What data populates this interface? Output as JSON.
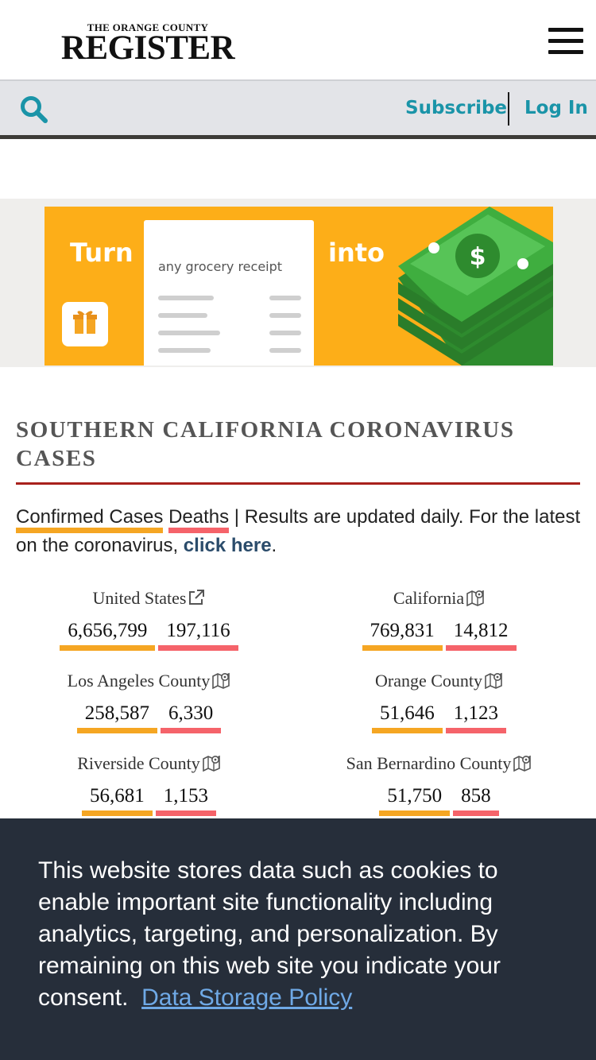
{
  "header": {
    "logo_top": "THE ORANGE COUNTY",
    "logo_main": "REGISTER",
    "menu_icon": "hamburger-menu-icon"
  },
  "subbar": {
    "search_icon": "search-icon",
    "subscribe_label": "Subscribe",
    "login_label": "Log In",
    "accent_color": "#1a94a8"
  },
  "ad": {
    "text_turn": "Turn",
    "text_receipt": "any grocery receipt",
    "text_into": "into",
    "background_color": "#fdae18"
  },
  "covid": {
    "title": "SOUTHERN CALIFORNIA CORONAVIRUS CASES",
    "legend_cases": "Confirmed Cases",
    "legend_deaths": "Deaths",
    "legend_rest": " | Results are updated daily. For the latest on the coronavirus, ",
    "legend_link": "click here",
    "legend_end": ".",
    "cases_color": "#f5a623",
    "deaths_color": "#f5636a",
    "regions": [
      {
        "name": "United States",
        "icon": "external-link-icon",
        "cases": "6,656,799",
        "deaths": "197,116"
      },
      {
        "name": "California",
        "icon": "map-icon",
        "cases": "769,831",
        "deaths": "14,812"
      },
      {
        "name": "Los Angeles County",
        "icon": "map-icon",
        "cases": "258,587",
        "deaths": "6,330"
      },
      {
        "name": "Orange County",
        "icon": "map-icon",
        "cases": "51,646",
        "deaths": "1,123"
      },
      {
        "name": "Riverside County",
        "icon": "map-icon",
        "cases": "56,681",
        "deaths": "1,153"
      },
      {
        "name": "San Bernardino County",
        "icon": "map-icon",
        "cases": "51,750",
        "deaths": "858"
      }
    ]
  },
  "cookie_banner": {
    "text": "This website stores data such as cookies to enable important site functionality including analytics, targeting, and personalization. By remaining on this web site you indicate your consent.",
    "link_label": "Data Storage Policy"
  }
}
